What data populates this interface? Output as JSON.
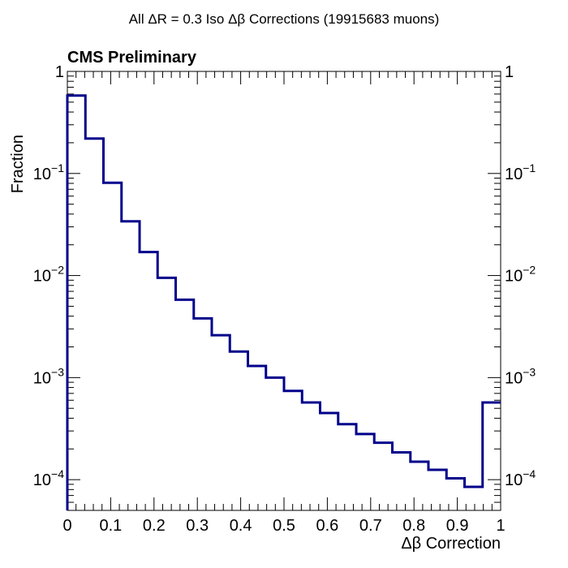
{
  "chart_data": {
    "type": "line",
    "style": "step histogram",
    "title": "All ΔR = 0.3 Iso Δβ Corrections (19915683 muons)",
    "annotation": "CMS Preliminary",
    "xlabel": "Δβ Correction",
    "ylabel": "Fraction",
    "xlim": [
      0,
      1
    ],
    "ylim": [
      5e-05,
      1
    ],
    "yscale": "log",
    "grid": false,
    "line_color": "#00008b",
    "x_ticks": [
      "0",
      "0.1",
      "0.2",
      "0.3",
      "0.4",
      "0.5",
      "0.6",
      "0.7",
      "0.8",
      "0.9",
      "1"
    ],
    "y_ticks": [
      {
        "base": "1",
        "exp": ""
      },
      {
        "base": "10",
        "exp": "−1"
      },
      {
        "base": "10",
        "exp": "−2"
      },
      {
        "base": "10",
        "exp": "−3"
      },
      {
        "base": "10",
        "exp": "−4"
      }
    ],
    "bin_edges": [
      0,
      0.0417,
      0.0833,
      0.125,
      0.1667,
      0.2083,
      0.25,
      0.2917,
      0.3333,
      0.375,
      0.4167,
      0.4583,
      0.5,
      0.5417,
      0.5833,
      0.625,
      0.6667,
      0.7083,
      0.75,
      0.7917,
      0.8333,
      0.875,
      0.9167,
      0.9583,
      1
    ],
    "values": [
      0.58,
      0.22,
      0.081,
      0.034,
      0.017,
      0.0095,
      0.0058,
      0.0038,
      0.0026,
      0.0018,
      0.0013,
      0.001,
      0.00074,
      0.00057,
      0.00045,
      0.00035,
      0.00028,
      0.00023,
      0.000185,
      0.00015,
      0.000125,
      0.000103,
      8.5e-05,
      0.00057
    ]
  }
}
